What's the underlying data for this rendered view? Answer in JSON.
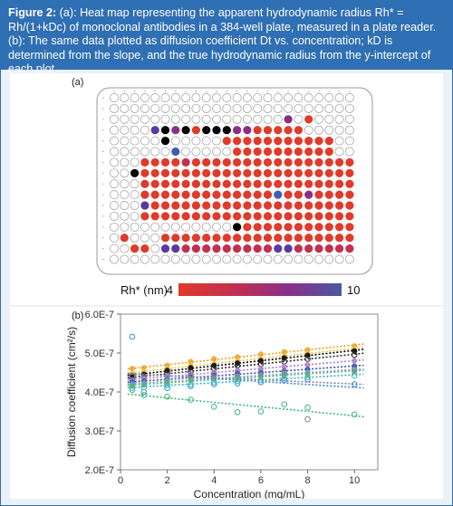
{
  "figure_caption": {
    "prefix": "Figure 2:",
    "text": " (a): Heat map representing the apparent hydrodynamic radius Rh* = Rh/(1+kDc) of monoclonal antibodies in a 384-well plate, measured in a plate reader. (b): The same data plotted as diffusion coefficient Dt vs. concentration; kD is determined from the slope, and the true hydrodynamic radius from the y-intercept of each plot."
  },
  "panel_a": {
    "label": "(a)",
    "colorbar": {
      "label": "Rh* (nm)",
      "min_label": "4",
      "max_label": "10",
      "colors": [
        "#e03a2a",
        "#c2304f",
        "#8a2f86",
        "#4b57a8"
      ]
    }
  },
  "panel_b_label": "(b)",
  "chart_data": [
    {
      "type": "heatmap",
      "plate_rows": 16,
      "plate_cols": 24,
      "cmap_range": [
        4,
        10
      ],
      "grid": [
        "........................",
        "........................",
        ".................P.R....",
        "....VWPQRKWKPPRRRRR.....",
        ".....K.....RRRRRRRRRRR..",
        "......B.....RRRRRRRRRR..",
        "...RRRRMRRRRRRRRRRRRRRRR",
        "..KRRRRRRRRRRRRRRRRRRRRR",
        "...RRRRRRRRRRRRRRRRRRRRR",
        "...RRRRRRRRRRRRRBRRPRRRR",
        "...VRRRRRRRRRRRRRRRRRRRR",
        "...RRRRRRRRRRRRRRRRRRRRR",
        "............KRRRRRRRRRRR",
        ".R...RRRRRRRRRRRRRRRRRRR",
        "..RR.VVMMMMMMMMMVVMMMMMM",
        "........................"
      ]
    },
    {
      "type": "scatter",
      "xlabel": "Concentration (mg/mL)",
      "ylabel": "Diffusion coefficient (cm²/s)",
      "xlim": [
        0,
        11
      ],
      "ylim": [
        2e-07,
        6e-07
      ],
      "x_ticks": [
        0,
        2,
        4,
        6,
        8,
        10
      ],
      "y_ticks": [
        2e-07,
        3e-07,
        4e-07,
        5e-07,
        6e-07
      ],
      "x_tick_labels": [
        "0",
        "2",
        "4",
        "6",
        "8",
        "10"
      ],
      "y_tick_labels": [
        "2.0E-7",
        "3.0E-7",
        "4.0E-7",
        "5.0E-7",
        "6.0E-7"
      ],
      "x": [
        0.5,
        1,
        2,
        3,
        4,
        5,
        6,
        7,
        8,
        10
      ],
      "series": [
        {
          "color": "#f0a020",
          "marker": "filled",
          "values": [
            4.6e-07,
            4.62e-07,
            4.68e-07,
            4.78e-07,
            4.85e-07,
            4.9e-07,
            4.97e-07,
            5.03e-07,
            5.08e-07,
            5.18e-07
          ]
        },
        {
          "color": "#e8c14a",
          "marker": "filled",
          "values": [
            4.48e-07,
            4.52e-07,
            4.6e-07,
            4.68e-07,
            4.72e-07,
            4.8e-07,
            4.85e-07,
            4.93e-07,
            5e-07,
            5.1e-07
          ]
        },
        {
          "color": "#000000",
          "marker": "filled",
          "values": [
            4.42e-07,
            4.45e-07,
            4.55e-07,
            4.62e-07,
            4.68e-07,
            4.74e-07,
            4.8e-07,
            4.87e-07,
            4.94e-07,
            5.05e-07
          ]
        },
        {
          "color": "#2a2a2a",
          "marker": "open",
          "values": [
            4.35e-07,
            4.4e-07,
            4.48e-07,
            4.53e-07,
            4.6e-07,
            4.68e-07,
            4.72e-07,
            4.78e-07,
            4.85e-07,
            4.95e-07
          ]
        },
        {
          "color": "#b07dc8",
          "marker": "filled",
          "values": [
            4.3e-07,
            4.35e-07,
            4.4e-07,
            4.46e-07,
            4.5e-07,
            4.55e-07,
            4.6e-07,
            4.65e-07,
            4.7e-07,
            4.8e-07
          ]
        },
        {
          "color": "#3050b0",
          "marker": "filled",
          "values": [
            4.25e-07,
            4.28e-07,
            4.32e-07,
            4.38e-07,
            4.42e-07,
            4.46e-07,
            4.5e-07,
            4.54e-07,
            4.58e-07,
            4.66e-07
          ]
        },
        {
          "color": "#7fa6d8",
          "marker": "filled",
          "values": [
            4.2e-07,
            4.22e-07,
            4.28e-07,
            4.32e-07,
            4.36e-07,
            4.4e-07,
            4.43e-07,
            4.47e-07,
            4.5e-07,
            4.56e-07
          ]
        },
        {
          "color": "#6aaa64",
          "marker": "filled",
          "values": [
            4.15e-07,
            4.18e-07,
            4.24e-07,
            4.3e-07,
            4.34e-07,
            4.37e-07,
            4.4e-07,
            4.43e-07,
            4.46e-07,
            4.52e-07
          ]
        },
        {
          "color": "#3a8ad0",
          "marker": "open",
          "values": [
            5.42e-07,
            4e-07,
            4.1e-07,
            4.15e-07,
            4.2e-07,
            4.22e-07,
            4.25e-07,
            4.3e-07,
            4.32e-07,
            4.2e-07
          ]
        },
        {
          "color": "#3cb878",
          "marker": "open",
          "values": [
            4.05e-07,
            3.92e-07,
            3.88e-07,
            3.8e-07,
            3.62e-07,
            3.48e-07,
            3.5e-07,
            3.68e-07,
            3.6e-07,
            3.42e-07
          ]
        },
        {
          "color": "#2fb6c0",
          "marker": "open",
          "values": [
            4.1e-07,
            4.12e-07,
            4.18e-07,
            4.2e-07,
            4.25e-07,
            4.28e-07,
            4.3e-07,
            4.35e-07,
            4.38e-07,
            4.42e-07
          ]
        },
        {
          "color": "#8080a0",
          "marker": "open",
          "values": [
            4.4e-07,
            4.38e-07,
            4.42e-07,
            4.44e-07,
            4.46e-07,
            4.48e-07,
            4.5e-07,
            4.52e-07,
            3.3e-07,
            4.58e-07
          ]
        }
      ]
    }
  ]
}
